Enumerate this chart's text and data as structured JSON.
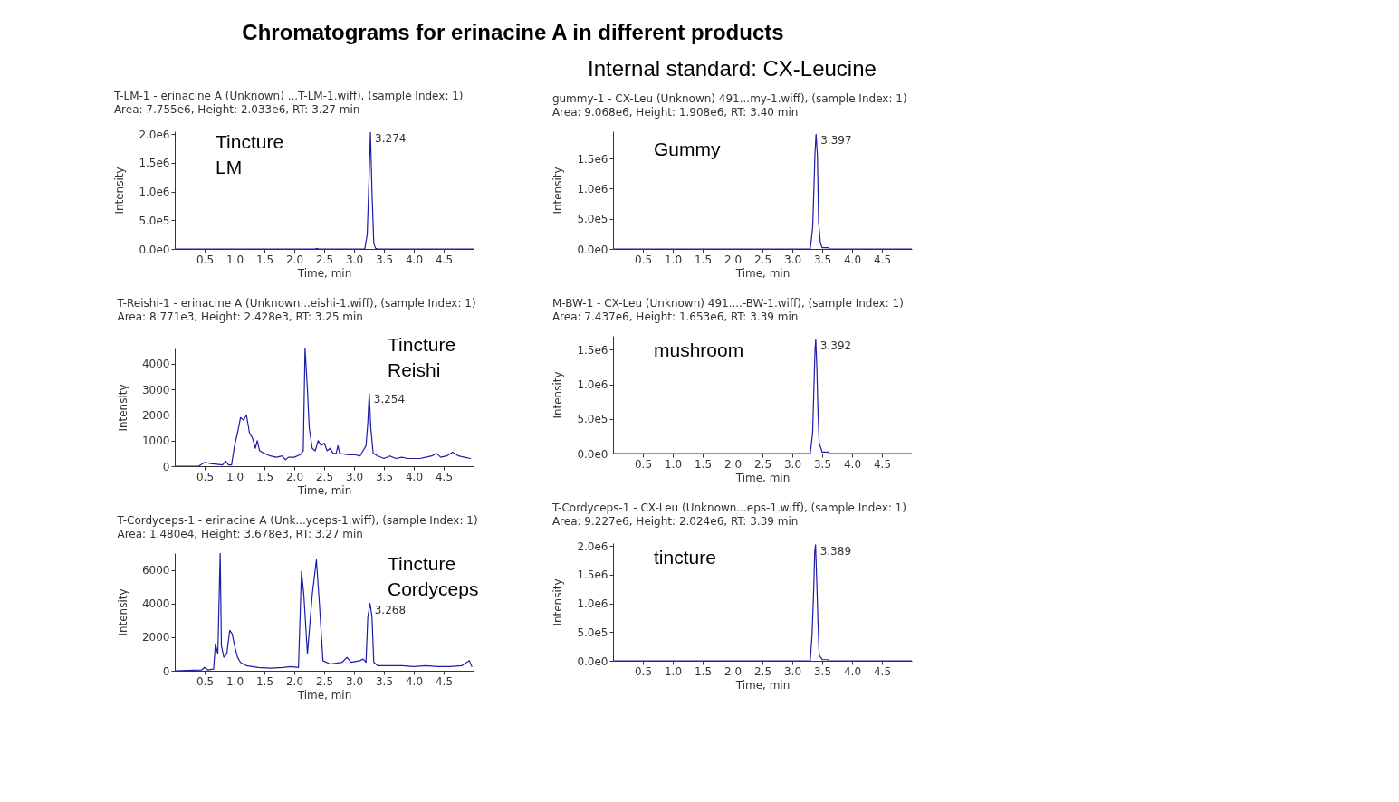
{
  "chart_data": [
    {
      "type": "line",
      "title": "T-LM-1 - erinacine A (Unknown) ...T-LM-1.wiff), (sample Index: 1)",
      "subtitle": "Area: 7.755e6, Height: 2.033e6, RT: 3.27 min",
      "xlabel": "Time, min",
      "ylabel": "Intensity",
      "color": "#1c1ca8",
      "annotations": [
        "Chromatograms for erinacine A in different products",
        "Tincture LM",
        {
          "text": "3.274",
          "x": 3.274,
          "y": 2030000
        }
      ],
      "x": [
        0,
        2.3,
        2.35,
        2.38,
        2.41,
        2.45,
        3.18,
        3.22,
        3.25,
        3.274,
        3.3,
        3.33,
        3.36,
        3.4,
        5
      ],
      "values": [
        0,
        0,
        0,
        10000,
        0,
        0,
        0,
        250000,
        1200000,
        2030000,
        1000000,
        100000,
        10000,
        0,
        0
      ],
      "xlim": [
        0,
        5
      ],
      "xticks": [
        0.5,
        {
          "value": 1,
          "label": "1.0"
        },
        1.5,
        {
          "value": 2,
          "label": "2.0"
        },
        2.5,
        {
          "value": 3,
          "label": "3.0"
        },
        3.5,
        {
          "value": 4,
          "label": "4.0"
        },
        4.5
      ],
      "ylim": [
        0,
        2050000
      ],
      "yticks": [
        {
          "value": 0,
          "label": "0.0e0"
        },
        {
          "value": 500000,
          "label": "5.0e5"
        },
        {
          "value": 1000000,
          "label": "1.0e6"
        },
        {
          "value": 1500000,
          "label": "1.5e6"
        },
        {
          "value": 2000000,
          "label": "2.0e6"
        }
      ]
    },
    {
      "type": "line",
      "title": "T-Reishi-1 - erinacine A (Unknown...eishi-1.wiff), (sample Index: 1)",
      "subtitle": "Area: 8.771e3, Height: 2.428e3, RT: 3.25 min",
      "xlabel": "Time, min",
      "ylabel": "Intensity",
      "color": "#1c1ca8",
      "annotations": [
        "Tincture Reishi",
        {
          "text": "3.254",
          "x": 3.254,
          "y": 2850
        }
      ],
      "x": [
        0,
        0.4,
        0.5,
        0.6,
        0.8,
        0.85,
        0.9,
        0.95,
        1.0,
        1.05,
        1.1,
        1.15,
        1.2,
        1.25,
        1.3,
        1.35,
        1.38,
        1.42,
        1.5,
        1.6,
        1.7,
        1.8,
        1.85,
        1.9,
        2.0,
        2.1,
        2.15,
        2.18,
        2.22,
        2.25,
        2.3,
        2.35,
        2.4,
        2.45,
        2.5,
        2.55,
        2.6,
        2.65,
        2.7,
        2.73,
        2.76,
        2.9,
        3.0,
        3.1,
        3.15,
        3.2,
        3.23,
        3.254,
        3.28,
        3.32,
        3.4,
        3.5,
        3.6,
        3.7,
        3.8,
        3.9,
        4.0,
        4.1,
        4.2,
        4.3,
        4.38,
        4.45,
        4.55,
        4.65,
        4.75,
        4.85,
        4.95
      ],
      "values": [
        0,
        0,
        150,
        100,
        50,
        200,
        50,
        50,
        800,
        1300,
        1900,
        1800,
        2000,
        1300,
        1100,
        700,
        1000,
        600,
        500,
        400,
        350,
        400,
        250,
        350,
        350,
        450,
        600,
        4600,
        3000,
        1500,
        700,
        600,
        1000,
        800,
        900,
        600,
        700,
        500,
        500,
        800,
        500,
        450,
        450,
        400,
        600,
        800,
        1700,
        2850,
        1500,
        500,
        400,
        300,
        400,
        300,
        350,
        300,
        300,
        300,
        350,
        400,
        500,
        350,
        400,
        550,
        400,
        350,
        300
      ],
      "xlim": [
        0,
        5
      ],
      "xticks": [
        0.5,
        {
          "value": 1,
          "label": "1.0"
        },
        1.5,
        {
          "value": 2,
          "label": "2.0"
        },
        2.5,
        {
          "value": 3,
          "label": "3.0"
        },
        3.5,
        {
          "value": 4,
          "label": "4.0"
        },
        4.5
      ],
      "ylim": [
        0,
        4600
      ],
      "yticks": [
        0,
        1000,
        2000,
        3000,
        4000
      ]
    },
    {
      "type": "line",
      "title": "T-Cordyceps-1 - erinacine A (Unk...yceps-1.wiff), (sample Index: 1)",
      "subtitle": "Area: 1.480e4, Height: 3.678e3, RT: 3.27 min",
      "xlabel": "Time, min",
      "ylabel": "Intensity",
      "color": "#1c1ca8",
      "annotations": [
        "Tincture Cordyceps",
        {
          "text": "3.268",
          "x": 3.268,
          "y": 4000
        }
      ],
      "x": [
        0,
        0.45,
        0.5,
        0.55,
        0.65,
        0.68,
        0.72,
        0.76,
        0.78,
        0.82,
        0.87,
        0.92,
        0.96,
        1.0,
        1.05,
        1.1,
        1.2,
        1.4,
        1.6,
        1.8,
        1.95,
        2.07,
        2.12,
        2.16,
        2.22,
        2.3,
        2.37,
        2.42,
        2.48,
        2.6,
        2.8,
        2.88,
        2.95,
        3.1,
        3.15,
        3.2,
        3.23,
        3.268,
        3.3,
        3.33,
        3.4,
        3.6,
        3.8,
        4.0,
        4.2,
        4.4,
        4.6,
        4.8,
        4.93,
        4.97
      ],
      "values": [
        0,
        50,
        200,
        50,
        100,
        1600,
        1000,
        7000,
        1500,
        800,
        1000,
        2400,
        2200,
        1500,
        800,
        500,
        300,
        200,
        150,
        200,
        250,
        200,
        5900,
        4500,
        1000,
        4500,
        6600,
        4000,
        600,
        400,
        500,
        800,
        500,
        600,
        700,
        500,
        3200,
        4000,
        3200,
        500,
        300,
        300,
        300,
        250,
        300,
        250,
        250,
        300,
        600,
        250
      ],
      "xlim": [
        0,
        5
      ],
      "xticks": [
        0.5,
        {
          "value": 1,
          "label": "1.0"
        },
        1.5,
        {
          "value": 2,
          "label": "2.0"
        },
        2.5,
        {
          "value": 3,
          "label": "3.0"
        },
        3.5,
        {
          "value": 4,
          "label": "4.0"
        },
        4.5
      ],
      "ylim": [
        0,
        7000
      ],
      "yticks": [
        0,
        2000,
        4000,
        6000
      ]
    },
    {
      "type": "line",
      "title": "gummy-1 - CX-Leu (Unknown) 491...my-1.wiff), (sample Index: 1)",
      "subtitle": "Area: 9.068e6, Height: 1.908e6, RT: 3.40 min",
      "xlabel": "Time, min",
      "ylabel": "Intensity",
      "color": "#1c1ca8",
      "annotations": [
        "Internal standard: CX-Leucine",
        "Gummy",
        {
          "text": "3.397",
          "x": 3.397,
          "y": 1900000
        }
      ],
      "x": [
        0,
        3.3,
        3.34,
        3.36,
        3.38,
        3.397,
        3.42,
        3.44,
        3.47,
        3.5,
        3.6,
        3.62,
        5
      ],
      "values": [
        0,
        0,
        350000,
        950000,
        1600000,
        1900000,
        1550000,
        450000,
        100000,
        20000,
        20000,
        0,
        0
      ],
      "xlim": [
        0,
        5
      ],
      "xticks": [
        0.5,
        {
          "value": 1,
          "label": "1.0"
        },
        1.5,
        {
          "value": 2,
          "label": "2.0"
        },
        2.5,
        {
          "value": 3,
          "label": "3.0"
        },
        3.5,
        {
          "value": 4,
          "label": "4.0"
        },
        4.5
      ],
      "ylim": [
        0,
        1950000
      ],
      "yticks": [
        {
          "value": 0,
          "label": "0.0e0"
        },
        {
          "value": 500000,
          "label": "5.0e5"
        },
        {
          "value": 1000000,
          "label": "1.0e6"
        },
        {
          "value": 1500000,
          "label": "1.5e6"
        }
      ]
    },
    {
      "type": "line",
      "title": "M-BW-1 - CX-Leu (Unknown) 491....-BW-1.wiff), (sample Index: 1)",
      "subtitle": "Area: 7.437e6, Height: 1.653e6, RT: 3.39 min",
      "xlabel": "Time, min",
      "ylabel": "Intensity",
      "color": "#1c1ca8",
      "annotations": [
        "mushroom",
        {
          "text": "3.392",
          "x": 3.392,
          "y": 1650000
        }
      ],
      "x": [
        0,
        3.3,
        3.34,
        3.36,
        3.38,
        3.392,
        3.41,
        3.43,
        3.45,
        3.5,
        3.6,
        3.62,
        5
      ],
      "values": [
        0,
        0,
        300000,
        900000,
        1500000,
        1650000,
        1250000,
        600000,
        150000,
        20000,
        20000,
        0,
        0
      ],
      "xlim": [
        0,
        5
      ],
      "xticks": [
        0.5,
        {
          "value": 1,
          "label": "1.0"
        },
        1.5,
        {
          "value": 2,
          "label": "2.0"
        },
        2.5,
        {
          "value": 3,
          "label": "3.0"
        },
        3.5,
        {
          "value": 4,
          "label": "4.0"
        },
        4.5
      ],
      "ylim": [
        0,
        1700000
      ],
      "yticks": [
        {
          "value": 0,
          "label": "0.0e0"
        },
        {
          "value": 500000,
          "label": "5.0e5"
        },
        {
          "value": 1000000,
          "label": "1.0e6"
        },
        {
          "value": 1500000,
          "label": "1.5e6"
        }
      ]
    },
    {
      "type": "line",
      "title": "T-Cordyceps-1 - CX-Leu (Unknown...eps-1.wiff), (sample Index: 1)",
      "subtitle": "Area: 9.227e6, Height: 2.024e6, RT: 3.39 min",
      "xlabel": "Time, min",
      "ylabel": "Intensity",
      "color": "#1c1ca8",
      "annotations": [
        "tincture",
        {
          "text": "3.389",
          "x": 3.389,
          "y": 2020000
        }
      ],
      "x": [
        0,
        3.3,
        3.33,
        3.36,
        3.375,
        3.389,
        3.41,
        3.43,
        3.45,
        3.5,
        3.6,
        3.62,
        5
      ],
      "values": [
        0,
        0,
        450000,
        1300000,
        1900000,
        2020000,
        1350000,
        650000,
        100000,
        20000,
        20000,
        0,
        0
      ],
      "xlim": [
        0,
        5
      ],
      "xticks": [
        0.5,
        {
          "value": 1,
          "label": "1.0"
        },
        1.5,
        {
          "value": 2,
          "label": "2.0"
        },
        2.5,
        {
          "value": 3,
          "label": "3.0"
        },
        3.5,
        {
          "value": 4,
          "label": "4.0"
        },
        4.5
      ],
      "ylim": [
        0,
        2050000
      ],
      "yticks": [
        {
          "value": 0,
          "label": "0.0e0"
        },
        {
          "value": 500000,
          "label": "5.0e5"
        },
        {
          "value": 1000000,
          "label": "1.0e6"
        },
        {
          "value": 1500000,
          "label": "1.5e6"
        },
        {
          "value": 2000000,
          "label": "2.0e6"
        }
      ]
    }
  ]
}
